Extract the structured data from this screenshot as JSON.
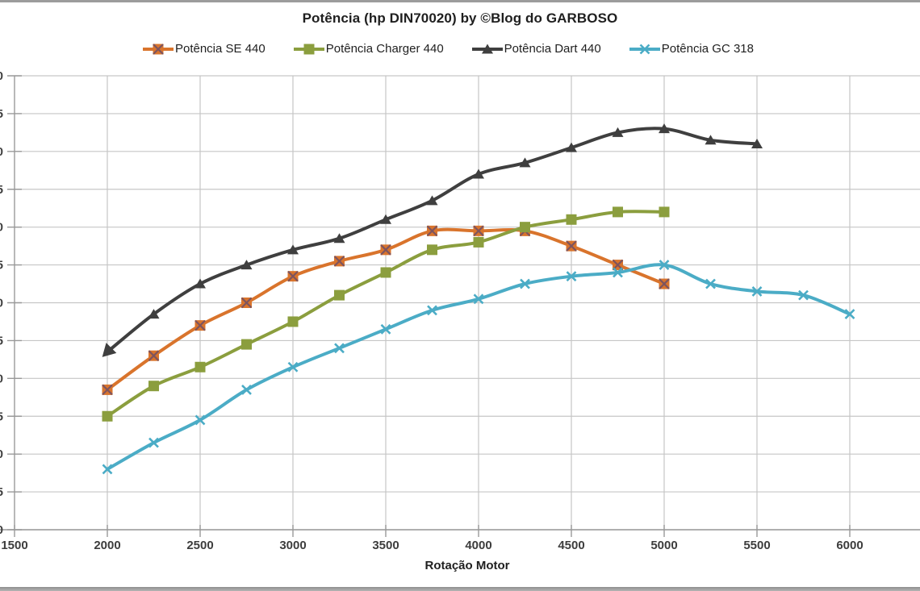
{
  "theme": {
    "background": "#ffffff",
    "gridline_color": "#c6c6c6",
    "axis_color": "#999999",
    "tick_label_color": "#3d3d3d",
    "text_color": "#1f1f1f",
    "frame_bar_color": "#9c9c9c"
  },
  "chart_data": {
    "type": "line",
    "title": "Potência (hp DIN70020) by ©Blog do GARBOSO",
    "xlabel": "Rotação Motor",
    "ylabel": "",
    "grid": true,
    "legend_position": "top",
    "x_ticks": [
      1500,
      2000,
      2500,
      3000,
      3500,
      4000,
      4500,
      5000,
      5500,
      6000
    ],
    "ylim": [
      110,
      170
    ],
    "y_tick_step": 5,
    "y_axis_labels_clipped_at_left_edge": true,
    "line_smoothing": true,
    "series": [
      {
        "name": "Potência SE 440",
        "color": "#d9742c",
        "marker": "square-x",
        "marker_x_color": "#7e545e",
        "x": [
          2000,
          2250,
          2500,
          2750,
          3000,
          3250,
          3500,
          3750,
          4000,
          4250,
          4500,
          4750,
          5000
        ],
        "values": [
          128.5,
          133,
          137,
          140,
          143.5,
          145.5,
          147,
          149.5,
          149.5,
          149.5,
          147.5,
          145,
          142.5
        ]
      },
      {
        "name": "Potência Charger 440",
        "color": "#8b9e3e",
        "marker": "square",
        "x": [
          2000,
          2250,
          2500,
          2750,
          3000,
          3250,
          3500,
          3750,
          4000,
          4250,
          4500,
          4750,
          5000
        ],
        "values": [
          125,
          129,
          131.5,
          134.5,
          137.5,
          141,
          144,
          147,
          148,
          150,
          151,
          152,
          152
        ]
      },
      {
        "name": "Potência Dart 440",
        "color": "#3f3f3f",
        "marker": "triangle",
        "first_point_arrowhead": true,
        "x": [
          2000,
          2250,
          2500,
          2750,
          3000,
          3250,
          3500,
          3750,
          4000,
          4250,
          4500,
          4750,
          5000,
          5250,
          5500
        ],
        "values": [
          133.5,
          138.5,
          142.5,
          145,
          147,
          148.5,
          151,
          153.5,
          157,
          158.5,
          160.5,
          162.5,
          163,
          161.5,
          161
        ]
      },
      {
        "name": "Potência GC 318",
        "color": "#4bacc6",
        "marker": "x",
        "x": [
          2000,
          2250,
          2500,
          2750,
          3000,
          3250,
          3500,
          3750,
          4000,
          4250,
          4500,
          4750,
          5000,
          5250,
          5500,
          5750,
          6000
        ],
        "values": [
          118,
          121.5,
          124.5,
          128.5,
          131.5,
          134,
          136.5,
          139,
          140.5,
          142.5,
          143.5,
          144,
          145,
          142.5,
          141.5,
          141,
          138.5
        ]
      }
    ]
  }
}
